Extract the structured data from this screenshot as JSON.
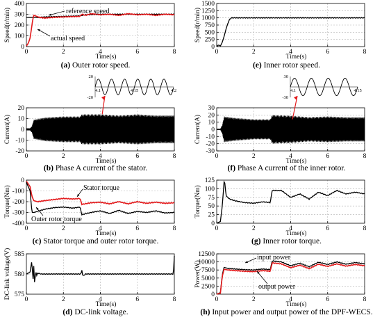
{
  "captions": [
    {
      "letter": "(a)",
      "text": " Outer rotor speed."
    },
    {
      "letter": "(b)",
      "text": " Phase A current of the stator."
    },
    {
      "letter": "(c)",
      "text": " Stator torque and outer rotor torque."
    },
    {
      "letter": "(d)",
      "text": " DC-link voltage."
    },
    {
      "letter": "(e)",
      "text": " Inner rotor speed."
    },
    {
      "letter": "(f)",
      "text": " Phase A current of the inner rotor."
    },
    {
      "letter": "(g)",
      "text": " Inner rotor torque."
    },
    {
      "letter": "(h)",
      "text": " Input power and output power of the DPF-WECS."
    }
  ],
  "colors": {
    "red": "#e31a1c",
    "black": "#000000",
    "grid": "#b0b0b0"
  },
  "chart_data": [
    {
      "id": "a",
      "type": "line",
      "xlabel": "Time(s)",
      "ylabel": "Speed(r/min)",
      "xlim": [
        0,
        8
      ],
      "ylim": [
        0,
        400
      ],
      "xticks": [
        0,
        2,
        4,
        6,
        8
      ],
      "yticks": [
        0,
        100,
        200,
        300,
        400
      ],
      "grid": true,
      "annotations": [
        "reference speed",
        "actual speed"
      ],
      "series": [
        {
          "name": "reference speed",
          "color": "black",
          "x": [
            0,
            0.3,
            0.4,
            0.5,
            1,
            2,
            2.9,
            3.0,
            3.2,
            4,
            5,
            6,
            7,
            8
          ],
          "y": [
            270,
            270,
            270,
            270,
            275,
            280,
            285,
            290,
            295,
            300,
            300,
            300,
            300,
            300
          ]
        },
        {
          "name": "actual speed",
          "color": "red",
          "x": [
            0,
            0.1,
            0.2,
            0.3,
            0.35,
            0.4,
            0.5,
            0.7,
            1,
            1.5,
            2,
            2.5,
            2.9,
            3.0,
            3.2,
            3.5,
            4,
            4.5,
            5,
            5.5,
            6,
            6.5,
            7,
            7.5,
            8
          ],
          "y": [
            5,
            30,
            80,
            200,
            255,
            290,
            285,
            270,
            265,
            272,
            275,
            278,
            280,
            300,
            290,
            305,
            295,
            300,
            290,
            305,
            295,
            300,
            290,
            300,
            295
          ]
        }
      ]
    },
    {
      "id": "b",
      "type": "line",
      "xlabel": "Time(s)",
      "ylabel": "Current(A)",
      "xlim": [
        0,
        8
      ],
      "ylim": [
        -20,
        20
      ],
      "xticks": [
        0,
        2,
        4,
        6,
        8
      ],
      "yticks": [
        -20,
        -10,
        0,
        10,
        20
      ],
      "grid": true,
      "envelope": {
        "x": [
          0,
          0.2,
          0.3,
          0.4,
          1,
          2,
          2.9,
          3.0,
          4,
          5,
          6,
          7,
          8
        ],
        "amp": [
          1,
          1,
          3,
          9,
          11,
          12,
          12,
          14,
          14,
          13,
          14,
          13,
          13
        ]
      },
      "inset": {
        "xlim": [
          4.1,
          4.2
        ],
        "ylim": [
          -20,
          20
        ],
        "xticks": [
          4.1,
          4.15,
          4.2
        ],
        "yticks": [
          -20,
          0,
          20
        ],
        "amplitude": 15,
        "period": 0.0167
      }
    },
    {
      "id": "c",
      "type": "line",
      "xlabel": "Time(s)",
      "ylabel": "Torque(Nm)",
      "xlim": [
        0,
        8
      ],
      "ylim": [
        -400,
        0
      ],
      "xticks": [
        0,
        2,
        4,
        6,
        8
      ],
      "yticks": [
        -400,
        -300,
        -200,
        -100,
        0
      ],
      "grid": true,
      "annotations": [
        "Stator torque",
        "Outer rotor torque"
      ],
      "series": [
        {
          "name": "Stator torque",
          "color": "red",
          "x": [
            0,
            0.2,
            0.3,
            0.4,
            0.6,
            1,
            1.5,
            2,
            2.5,
            2.9,
            3.0,
            3.5,
            4,
            4.5,
            5,
            5.5,
            6,
            6.5,
            7,
            7.5,
            8
          ],
          "y": [
            -10,
            -60,
            -150,
            -190,
            -200,
            -190,
            -180,
            -170,
            -175,
            -170,
            -225,
            -210,
            -205,
            -220,
            -200,
            -220,
            -200,
            -215,
            -205,
            -215,
            -210
          ]
        },
        {
          "name": "Outer rotor torque",
          "color": "black",
          "x": [
            0,
            0.2,
            0.3,
            0.4,
            0.6,
            1,
            1.5,
            2,
            2.5,
            2.9,
            3.0,
            3.5,
            4,
            4.5,
            5,
            5.5,
            6,
            6.5,
            7,
            7.5,
            8
          ],
          "y": [
            -20,
            -100,
            -300,
            -300,
            -290,
            -270,
            -255,
            -250,
            -260,
            -250,
            -320,
            -300,
            -285,
            -310,
            -280,
            -310,
            -290,
            -300,
            -285,
            -305,
            -300
          ]
        }
      ]
    },
    {
      "id": "d",
      "type": "line",
      "xlabel": "Time(s)",
      "ylabel": "DC-link voltage(V)",
      "xlim": [
        0,
        8
      ],
      "ylim": [
        575,
        585
      ],
      "xticks": [
        0,
        2,
        4,
        6,
        8
      ],
      "yticks": [
        575,
        580,
        585
      ],
      "grid": true,
      "series": [
        {
          "name": "",
          "color": "black",
          "x": [
            0,
            0.2,
            0.3,
            0.35,
            0.4,
            0.45,
            0.5,
            0.55,
            0.6,
            0.8,
            1,
            1.5,
            2,
            2.5,
            2.95,
            3.0,
            3.05,
            3.2,
            4,
            5,
            6,
            7,
            7.95,
            8
          ],
          "y": [
            580,
            580.5,
            583.5,
            578,
            582,
            577,
            581,
            579.5,
            580.2,
            580,
            580,
            580,
            580,
            580,
            580,
            581,
            579.5,
            580,
            580,
            580,
            580,
            580,
            580,
            584.5
          ]
        }
      ]
    },
    {
      "id": "e",
      "type": "line",
      "xlabel": "Time(s)",
      "ylabel": "Speed(r/min)",
      "xlim": [
        0,
        8
      ],
      "ylim": [
        0,
        1500
      ],
      "xticks": [
        0,
        2,
        4,
        6,
        8
      ],
      "yticks": [
        0,
        250,
        500,
        750,
        1000,
        1250,
        1500
      ],
      "grid": true,
      "series": [
        {
          "name": "",
          "color": "black",
          "x": [
            0,
            0.1,
            0.2,
            0.3,
            0.4,
            0.5,
            0.6,
            0.7,
            0.8,
            1,
            2,
            3,
            4,
            5,
            6,
            7,
            8
          ],
          "y": [
            0,
            60,
            20,
            150,
            350,
            600,
            800,
            950,
            1000,
            1000,
            1000,
            1000,
            1000,
            1000,
            1000,
            1000,
            1000
          ]
        }
      ]
    },
    {
      "id": "f",
      "type": "line",
      "xlabel": "Time(s)",
      "ylabel": "Current(A)",
      "xlim": [
        0,
        8
      ],
      "ylim": [
        -30,
        30
      ],
      "xticks": [
        0,
        2,
        4,
        6,
        8
      ],
      "yticks": [
        -30,
        -20,
        -10,
        0,
        10,
        20,
        30
      ],
      "grid": true,
      "envelope": {
        "x": [
          0,
          0.2,
          0.3,
          0.4,
          1,
          2,
          2.9,
          3.0,
          4,
          5,
          6,
          7,
          8
        ],
        "amp": [
          1,
          1,
          6,
          18,
          16,
          14,
          14,
          20,
          19,
          17,
          18,
          17,
          17
        ]
      },
      "inset": {
        "xlim": [
          4.1,
          4.15
        ],
        "ylim": [
          -30,
          30
        ],
        "xticks": [
          4.1,
          4.15
        ],
        "yticks": [
          -30,
          0,
          30
        ],
        "amplitude": 25,
        "period": 0.0125
      }
    },
    {
      "id": "g",
      "type": "line",
      "xlabel": "Time(s)",
      "ylabel": "Torque(Nm)",
      "xlim": [
        0,
        8
      ],
      "ylim": [
        0,
        125
      ],
      "xticks": [
        0,
        2,
        4,
        6,
        8
      ],
      "yticks": [
        0,
        25,
        50,
        75,
        100,
        125
      ],
      "grid": true,
      "series": [
        {
          "name": "",
          "color": "black",
          "x": [
            0,
            0.2,
            0.3,
            0.4,
            0.45,
            0.5,
            0.7,
            1,
            1.5,
            2,
            2.5,
            2.9,
            3.0,
            3.5,
            4,
            4.5,
            5,
            5.5,
            6,
            6.5,
            7,
            7.5,
            8
          ],
          "y": [
            0,
            5,
            50,
            120,
            115,
            80,
            70,
            65,
            60,
            58,
            62,
            60,
            95,
            95,
            75,
            85,
            70,
            90,
            80,
            95,
            85,
            90,
            85
          ]
        }
      ]
    },
    {
      "id": "h",
      "type": "line",
      "xlabel": "Time(s)",
      "ylabel": "Power(W)",
      "xlim": [
        0,
        8
      ],
      "ylim": [
        0,
        12500
      ],
      "xticks": [
        0,
        2,
        4,
        6,
        8
      ],
      "yticks": [
        0,
        2500,
        5000,
        7500,
        10000,
        12500
      ],
      "grid": true,
      "annotations": [
        "input power",
        "output power"
      ],
      "series": [
        {
          "name": "input power",
          "color": "black",
          "x": [
            0,
            0.2,
            0.3,
            0.4,
            0.6,
            1,
            1.5,
            2,
            2.5,
            2.9,
            3.0,
            3.5,
            4,
            4.5,
            5,
            5.5,
            6,
            6.5,
            7,
            7.5,
            8
          ],
          "y": [
            0,
            500,
            6000,
            8300,
            8000,
            7800,
            7600,
            7500,
            7800,
            7600,
            10300,
            10000,
            8800,
            9600,
            8500,
            9900,
            9200,
            10000,
            9300,
            9800,
            9400
          ]
        },
        {
          "name": "output power",
          "color": "red",
          "x": [
            0,
            0.2,
            0.3,
            0.4,
            0.6,
            1,
            1.5,
            2,
            2.5,
            2.9,
            3.0,
            3.5,
            4,
            4.5,
            5,
            5.5,
            6,
            6.5,
            7,
            7.5,
            8
          ],
          "y": [
            0,
            300,
            5500,
            7700,
            7500,
            7300,
            7100,
            7000,
            7300,
            7100,
            9700,
            9400,
            8200,
            9000,
            7900,
            9300,
            8600,
            9400,
            8700,
            9200,
            8800
          ]
        }
      ]
    }
  ]
}
